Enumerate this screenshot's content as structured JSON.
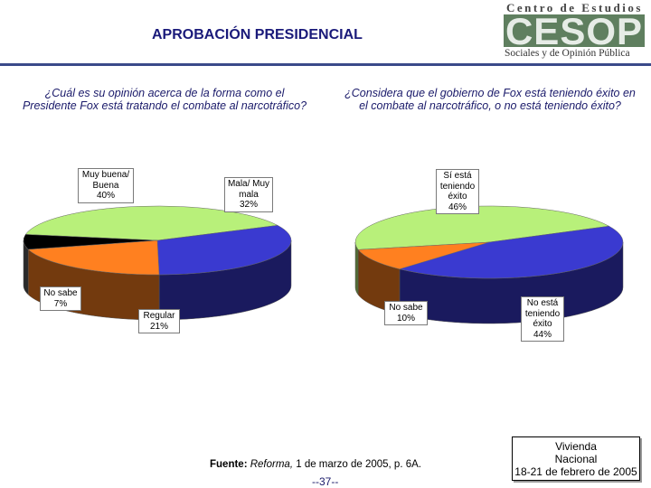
{
  "header": {
    "title": "APROBACIÓN PRESIDENCIAL",
    "logo_line1": "Centro de Estudios",
    "logo_mark": "CESOP",
    "logo_line2": "Sociales y de Opinión Pública"
  },
  "chart_data": [
    {
      "type": "pie",
      "title": "¿Cuál es su opinión acerca de la forma como el Presidente Fox está tratando el combate al narcotráfico?",
      "slices": [
        {
          "label": "Muy buena/ Buena",
          "value": 40,
          "display": "40%",
          "color": "#b8f07a"
        },
        {
          "label": "Mala/ Muy mala",
          "value": 32,
          "display": "32%",
          "color": "#3a3ad0"
        },
        {
          "label": "Regular",
          "value": 21,
          "display": "21%",
          "color": "#ff8020"
        },
        {
          "label": "No sabe",
          "value": 7,
          "display": "7%",
          "color": "#000000"
        }
      ]
    },
    {
      "type": "pie",
      "title": "¿Considera que el gobierno de Fox está teniendo éxito en el combate al narcotráfico, o no está teniendo éxito?",
      "slices": [
        {
          "label": "Sí está teniendo éxito",
          "value": 46,
          "display": "46%",
          "color": "#b8f07a"
        },
        {
          "label": "No está teniendo éxito",
          "value": 44,
          "display": "44%",
          "color": "#3a3ad0"
        },
        {
          "label": "No sabe",
          "value": 10,
          "display": "10%",
          "color": "#ff8020"
        }
      ]
    }
  ],
  "labels": {
    "c1_good": [
      "Muy buena/",
      "Buena"
    ],
    "c1_bad": [
      "Mala/ Muy",
      "mala"
    ],
    "c1_regular": [
      "Regular"
    ],
    "c1_nosabe": [
      "No sabe"
    ],
    "c2_yes": [
      "Sí está",
      "teniendo",
      "éxito"
    ],
    "c2_no": [
      "No está",
      "teniendo",
      "éxito"
    ],
    "c2_nosabe": [
      "No sabe"
    ]
  },
  "footer": {
    "source_label": "Fuente:",
    "source_pub": "Reforma,",
    "source_rest": "1 de marzo de 2005, p. 6A.",
    "page": "--37--",
    "survey_line1": "Vivienda",
    "survey_line2": "Nacional",
    "survey_line3": "18-21 de febrero de 2005"
  }
}
